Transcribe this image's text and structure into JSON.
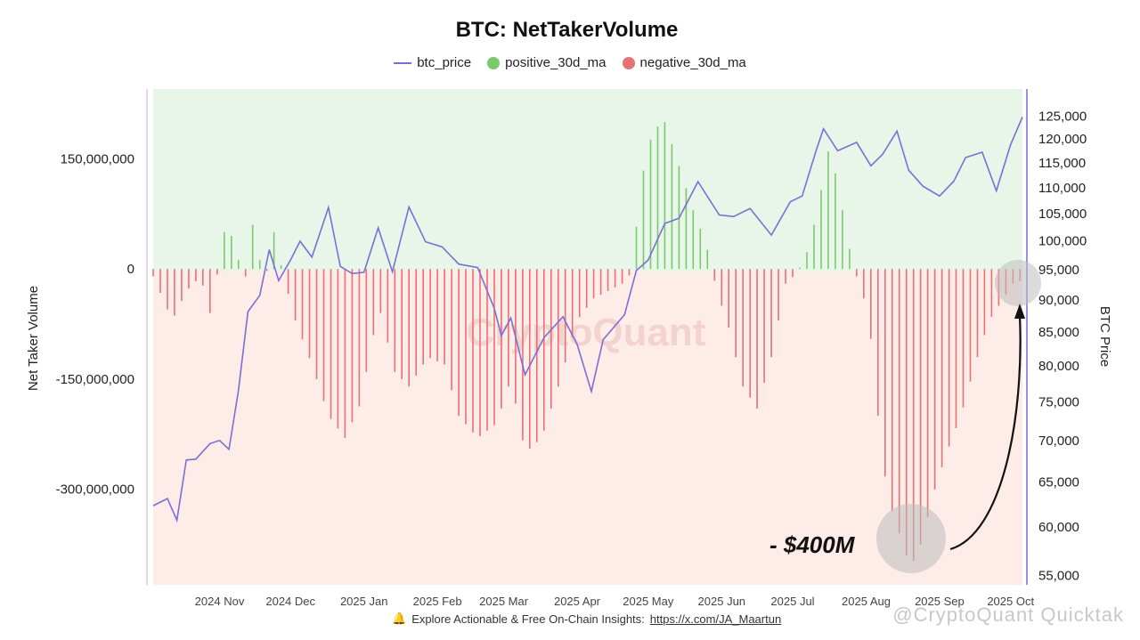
{
  "chart_data": {
    "type": "bar",
    "title": "BTC: NetTakerVolume",
    "legend": [
      {
        "name": "btc_price",
        "color": "#7b6fd6",
        "marker": "line"
      },
      {
        "name": "positive_30d_ma",
        "color": "#7ac96b",
        "marker": "dot"
      },
      {
        "name": "negative_30d_ma",
        "color": "#e57373",
        "marker": "dot"
      }
    ],
    "ylabel_left": "Net Taker Volume",
    "ylabel_right": "BTC Price",
    "left_ticks": [
      "150,000,000",
      "0",
      "-150,000,000",
      "-300,000,000"
    ],
    "left_tick_values": [
      150000000,
      0,
      -150000000,
      -300000000
    ],
    "ylim_left": [
      -430000000,
      245000000
    ],
    "right_ticks": [
      "125,000",
      "120,000",
      "115,000",
      "110,000",
      "105,000",
      "100,000",
      "95,000",
      "90,000",
      "85,000",
      "80,000",
      "75,000",
      "70,000",
      "65,000",
      "60,000",
      "55,000"
    ],
    "right_tick_values": [
      125000,
      120000,
      115000,
      110000,
      105000,
      100000,
      95000,
      90000,
      85000,
      80000,
      75000,
      70000,
      65000,
      60000,
      55000
    ],
    "right_scale": "log",
    "ylim_right": [
      54000,
      131000
    ],
    "x_ticks": [
      "2024 Nov",
      "2024 Dec",
      "2025 Jan",
      "2025 Feb",
      "2025 Mar",
      "2025 Apr",
      "2025 May",
      "2025 Jun",
      "2025 Jul",
      "2025 Aug",
      "2025 Sep",
      "2025 Oct"
    ],
    "x_tick_dates": [
      "2024-11-01",
      "2024-12-01",
      "2025-01-01",
      "2025-02-01",
      "2025-03-01",
      "2025-04-01",
      "2025-05-01",
      "2025-06-01",
      "2025-07-01",
      "2025-08-01",
      "2025-09-01",
      "2025-10-01"
    ],
    "x_range": [
      "2024-10-04",
      "2025-10-06"
    ],
    "btc_price": {
      "name": "btc_price",
      "x": [
        "2024-10-04",
        "2024-10-10",
        "2024-10-14",
        "2024-10-18",
        "2024-10-22",
        "2024-10-28",
        "2024-11-01",
        "2024-11-05",
        "2024-11-09",
        "2024-11-13",
        "2024-11-18",
        "2024-11-22",
        "2024-11-26",
        "2024-12-01",
        "2024-12-05",
        "2024-12-10",
        "2024-12-17",
        "2024-12-22",
        "2024-12-27",
        "2025-01-01",
        "2025-01-07",
        "2025-01-13",
        "2025-01-20",
        "2025-01-27",
        "2025-02-03",
        "2025-02-10",
        "2025-02-18",
        "2025-02-25",
        "2025-02-28",
        "2025-03-04",
        "2025-03-10",
        "2025-03-18",
        "2025-03-26",
        "2025-04-01",
        "2025-04-07",
        "2025-04-12",
        "2025-04-21",
        "2025-04-26",
        "2025-05-01",
        "2025-05-08",
        "2025-05-14",
        "2025-05-22",
        "2025-05-31",
        "2025-06-06",
        "2025-06-13",
        "2025-06-22",
        "2025-06-30",
        "2025-07-05",
        "2025-07-11",
        "2025-07-14",
        "2025-07-20",
        "2025-07-28",
        "2025-08-03",
        "2025-08-08",
        "2025-08-14",
        "2025-08-19",
        "2025-08-25",
        "2025-09-01",
        "2025-09-07",
        "2025-09-12",
        "2025-09-19",
        "2025-09-25",
        "2025-10-01",
        "2025-10-06"
      ],
      "y": [
        62200,
        63000,
        60600,
        67500,
        67600,
        69500,
        69900,
        68800,
        76400,
        88000,
        90600,
        98300,
        93000,
        96500,
        99800,
        97000,
        106000,
        95400,
        94200,
        94400,
        102200,
        94500,
        106100,
        99700,
        98800,
        95800,
        95200,
        88500,
        84300,
        87000,
        78600,
        84000,
        87200,
        83000,
        76300,
        83700,
        87500,
        94700,
        96500,
        103000,
        104000,
        111000,
        104600,
        104300,
        105800,
        100900,
        107100,
        108200,
        117500,
        122000,
        117300,
        119100,
        114200,
        116600,
        121500,
        113300,
        110100,
        108200,
        111100,
        115900,
        117000,
        109200,
        118600,
        124600
      ]
    },
    "net_taker_volume_30d_ma": {
      "x": [
        "2024-10-04",
        "2024-10-08",
        "2024-10-12",
        "2024-10-18",
        "2024-10-24",
        "2024-10-28",
        "2024-11-01",
        "2024-11-04",
        "2024-11-08",
        "2024-11-12",
        "2024-11-15",
        "2024-11-20",
        "2024-11-24",
        "2024-11-28",
        "2024-12-03",
        "2024-12-10",
        "2024-12-17",
        "2024-12-24",
        "2024-12-31",
        "2025-01-04",
        "2025-01-08",
        "2025-01-14",
        "2025-01-20",
        "2025-01-28",
        "2025-02-04",
        "2025-02-10",
        "2025-02-18",
        "2025-02-26",
        "2025-03-04",
        "2025-03-10",
        "2025-03-17",
        "2025-03-25",
        "2025-04-01",
        "2025-04-08",
        "2025-04-14",
        "2025-04-20",
        "2025-04-24",
        "2025-04-28",
        "2025-05-03",
        "2025-05-08",
        "2025-05-12",
        "2025-05-16",
        "2025-05-21",
        "2025-05-25",
        "2025-05-30",
        "2025-06-04",
        "2025-06-10",
        "2025-06-16",
        "2025-06-22",
        "2025-06-28",
        "2025-07-03",
        "2025-07-08",
        "2025-07-12",
        "2025-07-16",
        "2025-07-20",
        "2025-07-24",
        "2025-07-28",
        "2025-08-02",
        "2025-08-06",
        "2025-08-10",
        "2025-08-14",
        "2025-08-18",
        "2025-08-22",
        "2025-08-26",
        "2025-08-30",
        "2025-09-04",
        "2025-09-10",
        "2025-09-16",
        "2025-09-22",
        "2025-09-28",
        "2025-10-02",
        "2025-10-06"
      ],
      "y": [
        -10000000,
        -40000000,
        -70000000,
        -30000000,
        -10000000,
        -60000000,
        10000000,
        70000000,
        20000000,
        -10000000,
        60000000,
        -20000000,
        50000000,
        -10000000,
        -70000000,
        -130000000,
        -200000000,
        -230000000,
        -180000000,
        -100000000,
        -60000000,
        -140000000,
        -160000000,
        -120000000,
        -130000000,
        -200000000,
        -230000000,
        -210000000,
        -150000000,
        -250000000,
        -230000000,
        -150000000,
        -70000000,
        -40000000,
        -30000000,
        -20000000,
        -5000000,
        120000000,
        190000000,
        200000000,
        160000000,
        120000000,
        70000000,
        40000000,
        -30000000,
        -80000000,
        -160000000,
        -190000000,
        -120000000,
        -20000000,
        -5000000,
        30000000,
        90000000,
        160000000,
        120000000,
        40000000,
        -10000000,
        -60000000,
        -200000000,
        -310000000,
        -350000000,
        -390000000,
        -400000000,
        -350000000,
        -300000000,
        -250000000,
        -200000000,
        -130000000,
        -70000000,
        -40000000,
        -20000000,
        -15000000
      ]
    },
    "annotation": "- $400M",
    "watermark": "CryptoQuant"
  },
  "footer": {
    "bell_icon": "bell-icon",
    "text": "Explore Actionable & Free On-Chain Insights:",
    "link": "https://x.com/JA_Maartun"
  },
  "overlay_watermark": "@CryptoQuant Quicktak"
}
